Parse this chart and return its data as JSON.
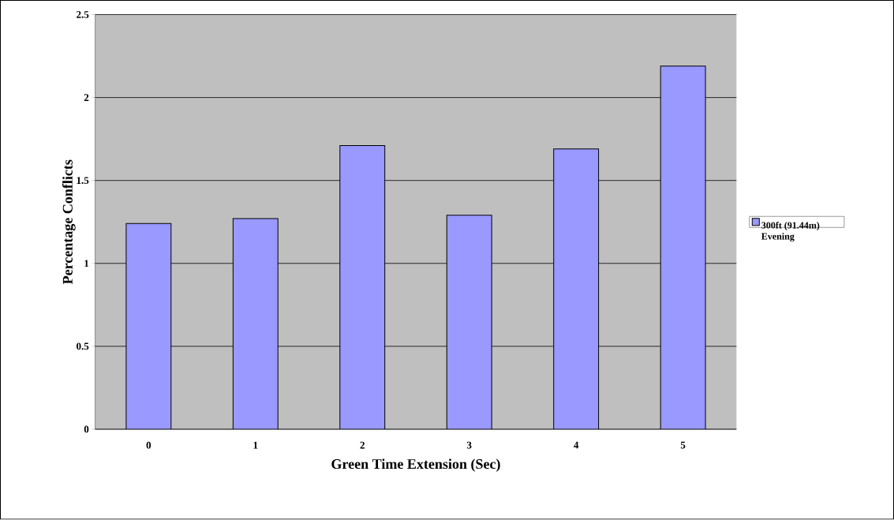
{
  "chart_data": {
    "type": "bar",
    "xlabel": "Green Time Extension (Sec)",
    "ylabel": "Percentage Conflicts",
    "categories": [
      "0",
      "1",
      "2",
      "3",
      "4",
      "5"
    ],
    "series": [
      {
        "name": "300ft (91.44m) Evening",
        "color": "#9999ff",
        "values": [
          1.24,
          1.27,
          1.71,
          1.29,
          1.69,
          2.19
        ]
      }
    ],
    "ylim": [
      0,
      2.5
    ],
    "yticks": [
      0,
      0.5,
      1,
      1.5,
      2,
      2.5
    ],
    "grid": "y",
    "legend": "right"
  }
}
